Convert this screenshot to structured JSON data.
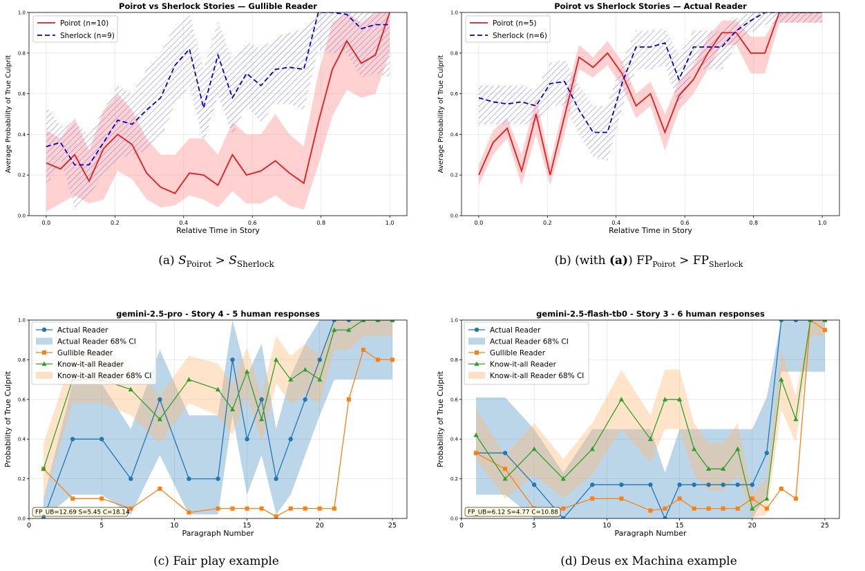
{
  "captions": {
    "a": {
      "prefix": "(a)",
      "s1": "S",
      "s1_sub": "Poirot",
      "gt": ">",
      "s2": "S",
      "s2_sub": "Sherlock"
    },
    "b": {
      "prefix": "(b) (with ",
      "bold": "(a)",
      "close": ")",
      "fp1": "FP",
      "fp1_sub": "Poirot",
      "gt": ">",
      "fp2": "FP",
      "fp2_sub": "Sherlock"
    },
    "c": "(c) Fair play example",
    "d": "(d) Deus ex Machina example"
  },
  "colors": {
    "poirot": "#e41a1c",
    "sherlock": "#0000cc",
    "actual": "#1f77b4",
    "gullible": "#ff7f0e",
    "knowitall": "#2ca02c"
  },
  "chart_data": [
    {
      "id": "a",
      "type": "line",
      "title": "Poirot vs Sherlock Stories — Gullible Reader",
      "xlabel": "Relative Time in Story",
      "ylabel": "Average Probability of True Culprit",
      "xlim": [
        -0.05,
        1.05
      ],
      "ylim": [
        0,
        1
      ],
      "xticks": [
        "0.0",
        "0.2",
        "0.4",
        "0.6",
        "0.8",
        "1.0"
      ],
      "yticks": [
        "0.0",
        "0.2",
        "0.4",
        "0.6",
        "0.8",
        "1.0"
      ],
      "grid": true,
      "legend_position": "upper left",
      "series": [
        {
          "name": "Poirot (n=10)",
          "style": "solid",
          "band_style": "fill",
          "x": [
            0.0,
            0.042,
            0.083,
            0.125,
            0.167,
            0.208,
            0.25,
            0.292,
            0.333,
            0.375,
            0.417,
            0.458,
            0.5,
            0.542,
            0.583,
            0.625,
            0.667,
            0.708,
            0.75,
            0.792,
            0.833,
            0.875,
            0.917,
            0.958,
            1.0
          ],
          "y": [
            0.26,
            0.23,
            0.3,
            0.17,
            0.33,
            0.4,
            0.35,
            0.21,
            0.14,
            0.11,
            0.21,
            0.2,
            0.15,
            0.3,
            0.2,
            0.22,
            0.27,
            0.21,
            0.16,
            0.46,
            0.72,
            0.86,
            0.75,
            0.79,
            1.0
          ],
          "lower": [
            0.02,
            0.06,
            0.1,
            0.06,
            0.08,
            0.22,
            0.18,
            0.08,
            0.04,
            0.05,
            0.1,
            0.08,
            0.04,
            0.12,
            0.06,
            0.06,
            0.1,
            0.05,
            0.03,
            0.25,
            0.49,
            0.62,
            0.58,
            0.6,
            0.8
          ],
          "upper": [
            0.42,
            0.38,
            0.48,
            0.32,
            0.52,
            0.6,
            0.52,
            0.38,
            0.3,
            0.3,
            0.38,
            0.38,
            0.3,
            0.46,
            0.4,
            0.4,
            0.5,
            0.4,
            0.34,
            0.7,
            0.95,
            1.0,
            0.95,
            1.0,
            1.0
          ]
        },
        {
          "name": "Sherlock (n=9)",
          "style": "dashed",
          "band_style": "hatch",
          "x": [
            0.0,
            0.042,
            0.083,
            0.125,
            0.167,
            0.208,
            0.25,
            0.292,
            0.333,
            0.375,
            0.417,
            0.458,
            0.5,
            0.542,
            0.583,
            0.625,
            0.667,
            0.708,
            0.75,
            0.792,
            0.833,
            0.875,
            0.917,
            0.958,
            1.0
          ],
          "y": [
            0.34,
            0.36,
            0.25,
            0.25,
            0.36,
            0.47,
            0.45,
            0.52,
            0.58,
            0.74,
            0.82,
            0.53,
            0.79,
            0.58,
            0.7,
            0.64,
            0.72,
            0.73,
            0.72,
            1.0,
            1.0,
            0.99,
            0.92,
            0.94,
            0.94
          ],
          "lower": [
            0.14,
            0.28,
            0.04,
            0.1,
            0.2,
            0.28,
            0.3,
            0.32,
            0.38,
            0.55,
            0.64,
            0.36,
            0.59,
            0.4,
            0.54,
            0.46,
            0.55,
            0.55,
            0.52,
            0.82,
            0.8,
            0.8,
            0.68,
            0.7,
            0.68
          ],
          "upper": [
            0.54,
            0.44,
            0.46,
            0.4,
            0.52,
            0.64,
            0.6,
            0.72,
            0.8,
            0.94,
            1.0,
            0.72,
            0.96,
            0.76,
            0.86,
            0.82,
            0.88,
            0.9,
            0.92,
            1.0,
            1.0,
            1.0,
            1.0,
            1.0,
            1.0
          ]
        }
      ]
    },
    {
      "id": "b",
      "type": "line",
      "title": "Poirot vs Sherlock Stories — Actual Reader",
      "xlabel": "Relative Time in Story",
      "ylabel": "Average Probability of True Culprit",
      "xlim": [
        -0.05,
        1.05
      ],
      "ylim": [
        0,
        1
      ],
      "xticks": [
        "0.0",
        "0.2",
        "0.4",
        "0.6",
        "0.8",
        "1.0"
      ],
      "yticks": [
        "0.0",
        "0.2",
        "0.4",
        "0.6",
        "0.8",
        "1.0"
      ],
      "grid": true,
      "legend_position": "upper left",
      "series": [
        {
          "name": "Poirot (n=5)",
          "style": "solid",
          "band_style": "fill",
          "x": [
            0.0,
            0.042,
            0.083,
            0.125,
            0.167,
            0.208,
            0.25,
            0.292,
            0.333,
            0.375,
            0.417,
            0.458,
            0.5,
            0.542,
            0.583,
            0.625,
            0.667,
            0.708,
            0.75,
            0.792,
            0.833,
            0.875,
            0.917,
            0.958,
            1.0
          ],
          "y": [
            0.2,
            0.36,
            0.43,
            0.22,
            0.5,
            0.2,
            0.49,
            0.78,
            0.73,
            0.8,
            0.7,
            0.54,
            0.6,
            0.41,
            0.59,
            0.67,
            0.8,
            0.9,
            0.9,
            0.8,
            0.8,
            1.0,
            1.0,
            1.0,
            1.0
          ],
          "lower": [
            0.15,
            0.3,
            0.38,
            0.15,
            0.4,
            0.15,
            0.4,
            0.72,
            0.68,
            0.74,
            0.64,
            0.48,
            0.54,
            0.32,
            0.52,
            0.6,
            0.72,
            0.84,
            0.84,
            0.7,
            0.7,
            0.95,
            0.95,
            0.95,
            0.95
          ],
          "upper": [
            0.25,
            0.42,
            0.48,
            0.3,
            0.58,
            0.26,
            0.56,
            0.84,
            0.78,
            0.86,
            0.76,
            0.6,
            0.66,
            0.5,
            0.66,
            0.74,
            0.88,
            0.96,
            0.96,
            0.88,
            0.88,
            1.0,
            1.0,
            1.0,
            1.0
          ]
        },
        {
          "name": "Sherlock (n=6)",
          "style": "dashed",
          "band_style": "hatch",
          "x": [
            0.0,
            0.042,
            0.083,
            0.125,
            0.167,
            0.208,
            0.25,
            0.292,
            0.333,
            0.375,
            0.417,
            0.458,
            0.5,
            0.542,
            0.583,
            0.625,
            0.667,
            0.708,
            0.75,
            0.792,
            0.833,
            0.875,
            0.917,
            0.958,
            1.0
          ],
          "y": [
            0.58,
            0.56,
            0.55,
            0.56,
            0.54,
            0.65,
            0.66,
            0.52,
            0.41,
            0.41,
            0.65,
            0.83,
            0.83,
            0.85,
            0.67,
            0.83,
            0.83,
            0.83,
            0.91,
            0.96,
            1.0,
            1.0,
            1.0,
            1.0,
            1.0
          ],
          "lower": [
            0.45,
            0.45,
            0.45,
            0.45,
            0.45,
            0.54,
            0.54,
            0.4,
            0.29,
            0.27,
            0.53,
            0.72,
            0.72,
            0.74,
            0.54,
            0.72,
            0.72,
            0.72,
            0.84,
            0.9,
            0.94,
            0.95,
            0.95,
            0.95,
            0.95
          ],
          "upper": [
            0.64,
            0.64,
            0.64,
            0.64,
            0.62,
            0.75,
            0.77,
            0.64,
            0.54,
            0.54,
            0.76,
            0.91,
            0.91,
            0.92,
            0.79,
            0.91,
            0.91,
            0.91,
            0.97,
            1.0,
            1.0,
            1.0,
            1.0,
            1.0,
            1.0
          ]
        }
      ]
    },
    {
      "id": "c",
      "type": "line",
      "title": "gemini-2.5-pro - Story 4 - 5 human responses",
      "xlabel": "Paragraph Number",
      "ylabel": "Probability of True Culprit",
      "xlim": [
        0,
        26
      ],
      "ylim": [
        0,
        1
      ],
      "xticks": [
        "0",
        "5",
        "10",
        "15",
        "20",
        "25"
      ],
      "yticks": [
        "0.0",
        "0.2",
        "0.4",
        "0.6",
        "0.8",
        "1.0"
      ],
      "grid": true,
      "legend_position": "upper left",
      "annotation": "FP_UB=12.69  S=5.45  C=18.14",
      "series": [
        {
          "name": "Actual Reader",
          "marker": "circle",
          "band_name": "Actual Reader 68% CI",
          "x": [
            1,
            3,
            5,
            7,
            9,
            11,
            13,
            14,
            15,
            16,
            17,
            18,
            19,
            20,
            21,
            22,
            23,
            24,
            25
          ],
          "y": [
            0.0,
            0.4,
            0.4,
            0.2,
            0.6,
            0.2,
            0.2,
            0.8,
            0.4,
            0.6,
            0.2,
            0.4,
            0.6,
            0.8,
            1.0,
            1.0,
            1.0,
            1.0,
            1.0
          ],
          "lower": [
            0.0,
            0.12,
            0.12,
            0.02,
            0.32,
            0.02,
            0.02,
            0.52,
            0.12,
            0.32,
            0.02,
            0.12,
            0.32,
            0.52,
            0.7,
            0.7,
            0.7,
            0.7,
            0.7
          ],
          "upper": [
            0.1,
            0.68,
            0.68,
            0.45,
            0.85,
            0.52,
            0.52,
            1.0,
            0.72,
            0.88,
            0.45,
            0.72,
            0.88,
            1.0,
            1.0,
            1.0,
            1.0,
            1.0,
            1.0
          ]
        },
        {
          "name": "Gullible Reader",
          "marker": "square",
          "x": [
            1,
            3,
            5,
            7,
            9,
            11,
            13,
            14,
            15,
            16,
            17,
            18,
            19,
            20,
            21,
            22,
            23,
            24,
            25
          ],
          "y": [
            0.25,
            0.1,
            0.1,
            0.05,
            0.15,
            0.03,
            0.05,
            0.05,
            0.05,
            0.05,
            0.01,
            0.05,
            0.05,
            0.05,
            0.05,
            0.6,
            0.85,
            0.8,
            0.8
          ]
        },
        {
          "name": "Know-it-all Reader",
          "marker": "triangle",
          "band_name": "Know-it-all Reader 68% CI",
          "x": [
            1,
            3,
            5,
            7,
            9,
            11,
            13,
            14,
            15,
            16,
            17,
            18,
            19,
            20,
            21,
            22,
            23,
            24,
            25
          ],
          "y": [
            0.25,
            0.7,
            0.7,
            0.65,
            0.5,
            0.7,
            0.65,
            0.55,
            0.74,
            0.5,
            0.8,
            0.7,
            0.75,
            0.7,
            0.95,
            0.95,
            1.0,
            1.0,
            1.0
          ],
          "lower": [
            0.1,
            0.58,
            0.58,
            0.52,
            0.38,
            0.58,
            0.52,
            0.42,
            0.62,
            0.38,
            0.68,
            0.58,
            0.62,
            0.58,
            0.85,
            0.85,
            0.92,
            0.92,
            0.92
          ],
          "upper": [
            0.38,
            0.82,
            0.85,
            0.78,
            0.62,
            0.82,
            0.78,
            0.68,
            0.86,
            0.62,
            0.92,
            0.82,
            0.88,
            0.82,
            1.0,
            1.0,
            1.0,
            1.0,
            1.0
          ]
        }
      ]
    },
    {
      "id": "d",
      "type": "line",
      "title": "gemini-2.5-flash-tb0 - Story 3 - 6 human responses",
      "xlabel": "Paragraph Number",
      "ylabel": "Probability of True Culprit",
      "xlim": [
        0,
        26
      ],
      "ylim": [
        0,
        1
      ],
      "xticks": [
        "0",
        "5",
        "10",
        "15",
        "20",
        "25"
      ],
      "yticks": [
        "0.0",
        "0.2",
        "0.4",
        "0.6",
        "0.8",
        "1.0"
      ],
      "grid": true,
      "legend_position": "upper left",
      "annotation": "FP_UB=6.12  S=4.77  C=10.88",
      "series": [
        {
          "name": "Actual Reader",
          "marker": "circle",
          "band_name": "Actual Reader 68% CI",
          "x": [
            1,
            3,
            5,
            7,
            9,
            11,
            13,
            14,
            15,
            16,
            17,
            18,
            19,
            20,
            21,
            22,
            23,
            24,
            25
          ],
          "y": [
            0.33,
            0.33,
            0.17,
            0.0,
            0.17,
            0.17,
            0.17,
            0.0,
            0.17,
            0.17,
            0.17,
            0.17,
            0.17,
            0.17,
            0.33,
            1.0,
            1.0,
            1.0,
            1.0
          ],
          "lower": [
            0.12,
            0.12,
            0.0,
            0.0,
            0.0,
            0.0,
            0.0,
            0.0,
            0.0,
            0.0,
            0.0,
            0.0,
            0.0,
            0.0,
            0.12,
            0.74,
            0.74,
            0.74,
            0.74
          ],
          "upper": [
            0.61,
            0.61,
            0.45,
            0.23,
            0.45,
            0.45,
            0.45,
            0.23,
            0.45,
            0.45,
            0.45,
            0.45,
            0.45,
            0.45,
            0.61,
            1.0,
            1.0,
            1.0,
            1.0
          ]
        },
        {
          "name": "Gullible Reader",
          "marker": "square",
          "x": [
            1,
            3,
            5,
            7,
            9,
            11,
            13,
            14,
            15,
            16,
            17,
            18,
            19,
            20,
            21,
            22,
            23,
            24,
            25
          ],
          "y": [
            0.33,
            0.25,
            0.05,
            0.05,
            0.1,
            0.1,
            0.04,
            0.05,
            0.1,
            0.05,
            0.05,
            0.05,
            0.05,
            0.1,
            0.05,
            0.15,
            0.1,
            1.0,
            0.95
          ]
        },
        {
          "name": "Know-it-all Reader",
          "marker": "triangle",
          "band_name": "Know-it-all Reader 68% CI",
          "x": [
            1,
            3,
            5,
            7,
            9,
            11,
            13,
            14,
            15,
            16,
            17,
            18,
            19,
            20,
            21,
            22,
            23,
            24,
            25
          ],
          "y": [
            0.42,
            0.2,
            0.35,
            0.2,
            0.35,
            0.6,
            0.4,
            0.6,
            0.6,
            0.35,
            0.25,
            0.25,
            0.35,
            0.05,
            0.1,
            0.7,
            0.5,
            1.0,
            1.0
          ],
          "lower": [
            0.3,
            0.1,
            0.22,
            0.1,
            0.22,
            0.45,
            0.28,
            0.45,
            0.45,
            0.22,
            0.14,
            0.14,
            0.22,
            0.0,
            0.02,
            0.55,
            0.38,
            0.92,
            0.92
          ],
          "upper": [
            0.55,
            0.32,
            0.48,
            0.3,
            0.48,
            0.75,
            0.52,
            0.75,
            0.75,
            0.48,
            0.38,
            0.38,
            0.48,
            0.12,
            0.2,
            0.85,
            0.62,
            1.0,
            1.0
          ]
        }
      ]
    }
  ]
}
